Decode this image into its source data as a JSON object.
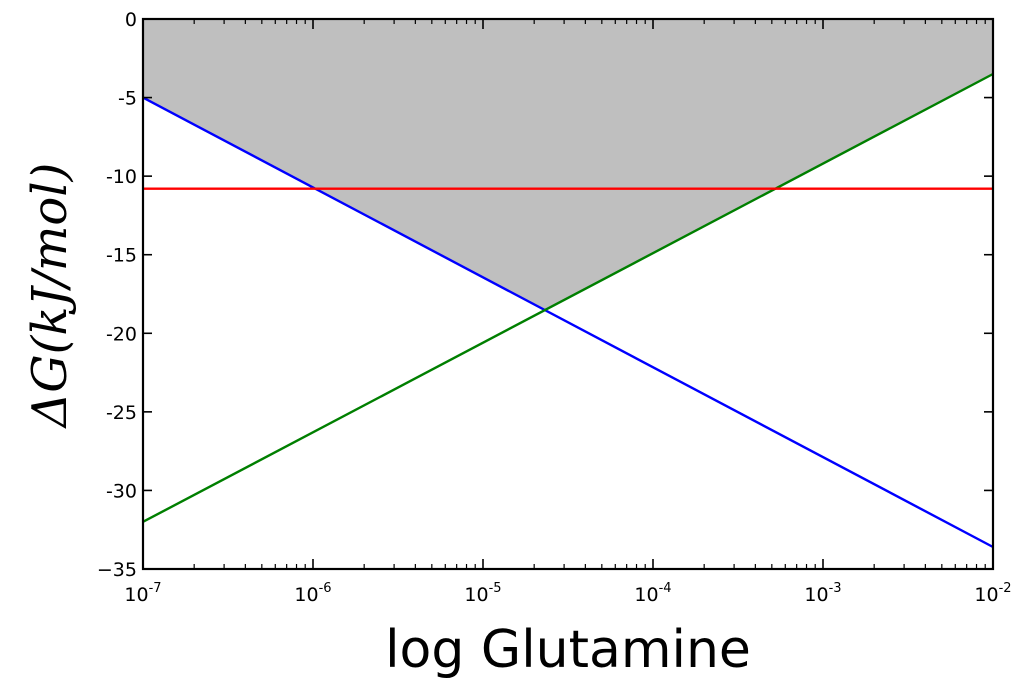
{
  "chart_data": {
    "type": "line",
    "title": "",
    "xlabel": "log Glutamine",
    "ylabel": "ΔG(kJ/mol)",
    "xscale": "log",
    "xlim": [
      1e-07,
      0.01
    ],
    "ylim": [
      -35,
      0
    ],
    "x_ticks": [
      {
        "value": 1e-07,
        "base": "10",
        "exp": "-7"
      },
      {
        "value": 1e-06,
        "base": "10",
        "exp": "-6"
      },
      {
        "value": 1e-05,
        "base": "10",
        "exp": "-5"
      },
      {
        "value": 0.0001,
        "base": "10",
        "exp": "-4"
      },
      {
        "value": 0.001,
        "base": "10",
        "exp": "-3"
      },
      {
        "value": 0.01,
        "base": "10",
        "exp": "-2"
      }
    ],
    "y_ticks": [
      {
        "value": 0,
        "label": "0"
      },
      {
        "value": -5,
        "label": "-5"
      },
      {
        "value": -10,
        "label": "-10"
      },
      {
        "value": -15,
        "label": "-15"
      },
      {
        "value": -20,
        "label": "-20"
      },
      {
        "value": -25,
        "label": "-25"
      },
      {
        "value": -30,
        "label": "-30"
      },
      {
        "value": -35,
        "label": "−35"
      }
    ],
    "grid": false,
    "series": [
      {
        "color": "#0000ff",
        "x": [
          1e-07,
          0.01
        ],
        "y": [
          -5.0,
          -33.6
        ]
      },
      {
        "color": "#007f00",
        "x": [
          1e-07,
          0.01
        ],
        "y": [
          -32.0,
          -3.5
        ]
      },
      {
        "color": "#ff0000",
        "x": [
          1e-07,
          0.01
        ],
        "y": [
          -10.8,
          -10.8
        ]
      }
    ],
    "shaded_region": {
      "color": "#bfbfbf",
      "x": [
        1e-07,
        1e-06,
        2.3e-05,
        0.00053,
        0.01
      ],
      "y_top": [
        0,
        0,
        0,
        0,
        0
      ],
      "y_bottom": [
        -5.0,
        -10.8,
        -18.55,
        -10.8,
        -3.5
      ]
    }
  }
}
